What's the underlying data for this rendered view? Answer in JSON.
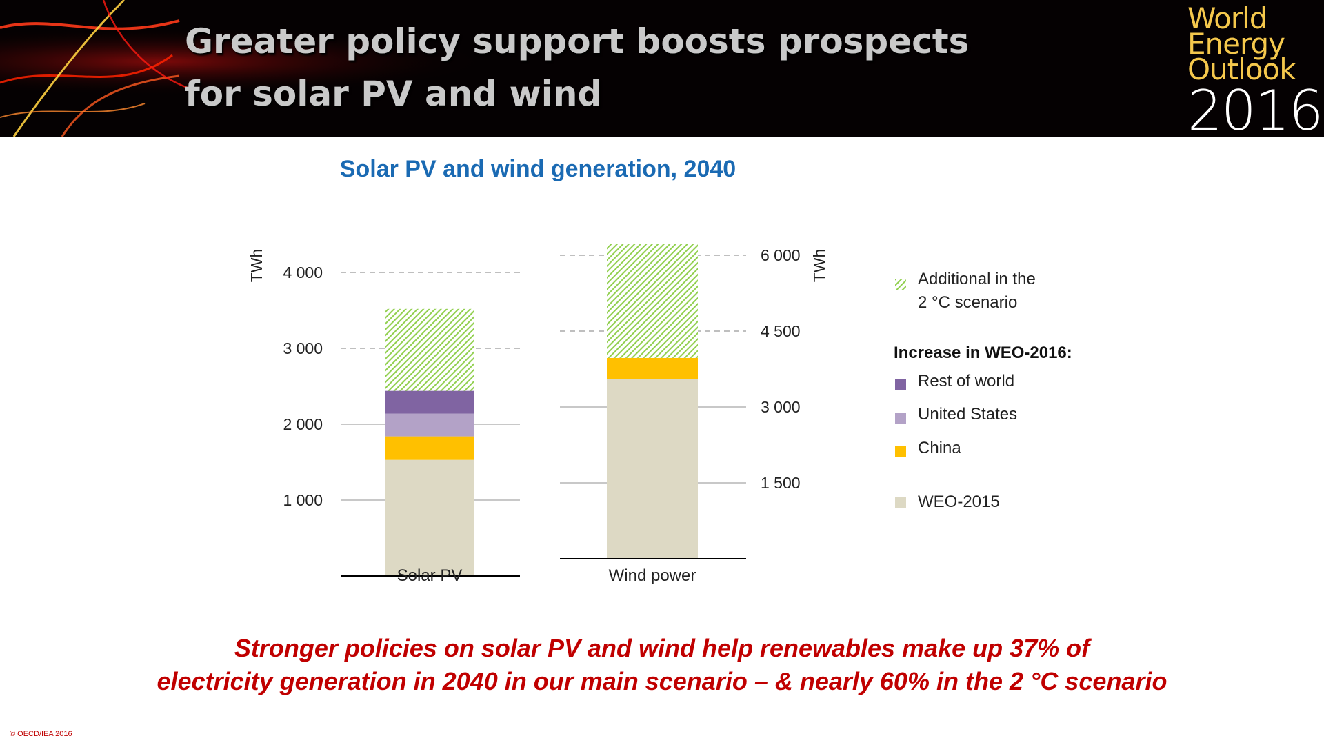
{
  "slide": {
    "title": "Greater policy support boosts prospects\nfor solar PV and wind",
    "logo": {
      "line1": "World",
      "line2": "Energy",
      "line3": "Outlook",
      "line4": "2016"
    },
    "caption": "Stronger policies on solar PV and wind help renewables make up 37% of\nelectricity generation in 2040 in our main scenario – & nearly 60% in the 2 °C scenario",
    "copyright": "© OECD/IEA 2016"
  },
  "colors": {
    "weo2015": "#ddd9c4",
    "china": "#ffc000",
    "united_states": "#b3a2c7",
    "rest_of_world": "#8064a2",
    "additional_2c": "#92d050",
    "title_blue": "#1a6ab3",
    "caption_red": "#c00000"
  },
  "legend": {
    "heading": "Increase in WEO-2016:",
    "items": [
      {
        "label": "Additional in the\n2 °C scenario",
        "color_key": "additional_2c",
        "pattern": "hatched"
      },
      {
        "label": "Rest of world",
        "color_key": "rest_of_world"
      },
      {
        "label": "United States",
        "color_key": "united_states"
      },
      {
        "label": "China",
        "color_key": "china"
      },
      {
        "label": "WEO-2015",
        "color_key": "weo2015"
      }
    ]
  },
  "chart_data": [
    {
      "type": "bar",
      "stacked": true,
      "title": "Solar PV and wind generation, 2040",
      "categories": [
        "Solar PV"
      ],
      "ylabel": "TWh",
      "ylim": [
        0,
        4000
      ],
      "yticks": [
        1000,
        2000,
        3000,
        4000
      ],
      "ytick_labels": [
        "1 000",
        "2 000",
        "3 000",
        "4 000"
      ],
      "grid": true,
      "series": [
        {
          "name": "WEO-2015",
          "values": [
            1530
          ]
        },
        {
          "name": "China",
          "values": [
            310
          ]
        },
        {
          "name": "United States",
          "values": [
            300
          ]
        },
        {
          "name": "Rest of world",
          "values": [
            300
          ]
        },
        {
          "name": "Additional in the 2 °C scenario",
          "values": [
            1080
          ]
        }
      ]
    },
    {
      "type": "bar",
      "stacked": true,
      "categories": [
        "Wind power"
      ],
      "ylabel": "TWh",
      "ylim": [
        0,
        6000
      ],
      "yticks": [
        1500,
        3000,
        4500,
        6000
      ],
      "ytick_labels": [
        "1 500",
        "3 000",
        "4 500",
        "6 000"
      ],
      "grid": true,
      "series": [
        {
          "name": "WEO-2015",
          "values": [
            3550
          ]
        },
        {
          "name": "China",
          "values": [
            420
          ]
        },
        {
          "name": "Additional in the 2 °C scenario",
          "values": [
            2250
          ]
        }
      ]
    }
  ]
}
